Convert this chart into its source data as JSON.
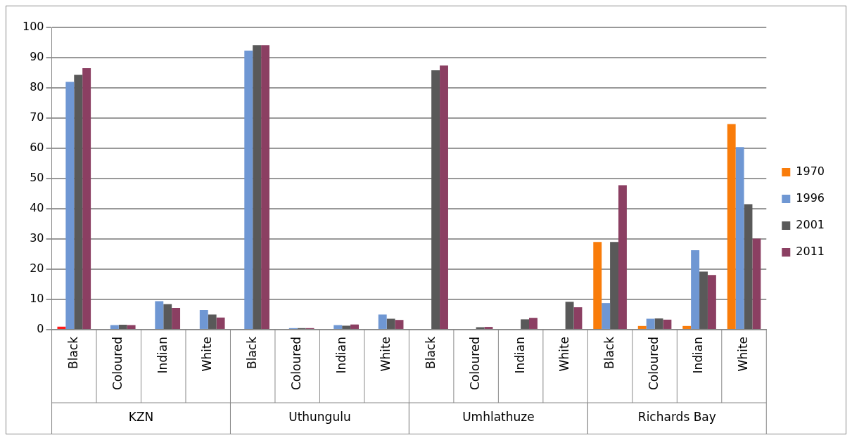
{
  "chart_data": {
    "type": "bar",
    "categories": [
      "Black",
      "Coloured",
      "Indian",
      "White",
      "Black",
      "Coloured",
      "Indian",
      "White",
      "Black",
      "Coloured",
      "Indian",
      "White",
      "Black",
      "Coloured",
      "Indian",
      "White"
    ],
    "series": [
      {
        "name": "1970",
        "color": "#f97c0a",
        "colors": [
          "#ff1a1a",
          "#f97c0a",
          "#f97c0a",
          "#f97c0a",
          "#f97c0a",
          "#f97c0a",
          "#f97c0a",
          "#f97c0a",
          "#f97c0a",
          "#f97c0a",
          "#f97c0a",
          "#f97c0a",
          "#f97c0a",
          "#f97c0a",
          "#f97c0a",
          "#f97c0a"
        ],
        "values": [
          1,
          null,
          null,
          null,
          null,
          null,
          null,
          null,
          null,
          null,
          null,
          null,
          29,
          1.2,
          1.2,
          68
        ]
      },
      {
        "name": "1996",
        "color": "#6f97d3",
        "values": [
          82,
          1.5,
          9.4,
          6.5,
          92.3,
          0.5,
          1.5,
          5,
          null,
          null,
          null,
          null,
          8.8,
          3.6,
          26.3,
          60.4
        ]
      },
      {
        "name": "2001",
        "color": "#595959",
        "values": [
          84.3,
          1.6,
          8.4,
          5,
          94.1,
          0.5,
          1.3,
          3.6,
          85.8,
          0.8,
          3.4,
          9.2,
          29,
          3.7,
          19.2,
          41.5
        ]
      },
      {
        "name": "2011",
        "color": "#8b3f62",
        "values": [
          86.5,
          1.5,
          7.2,
          4,
          94.1,
          0.5,
          1.7,
          3.2,
          87.4,
          0.9,
          3.9,
          7.4,
          47.8,
          3.3,
          18.1,
          30.1
        ]
      }
    ],
    "ylim": [
      0,
      100
    ],
    "yticks": [
      0,
      10,
      20,
      30,
      40,
      50,
      60,
      70,
      80,
      90,
      100
    ],
    "grid": "y",
    "legend": "right",
    "annotations": [
      "KZN",
      "Uthungulu",
      "Umhlathuze",
      "Richards Bay"
    ]
  }
}
